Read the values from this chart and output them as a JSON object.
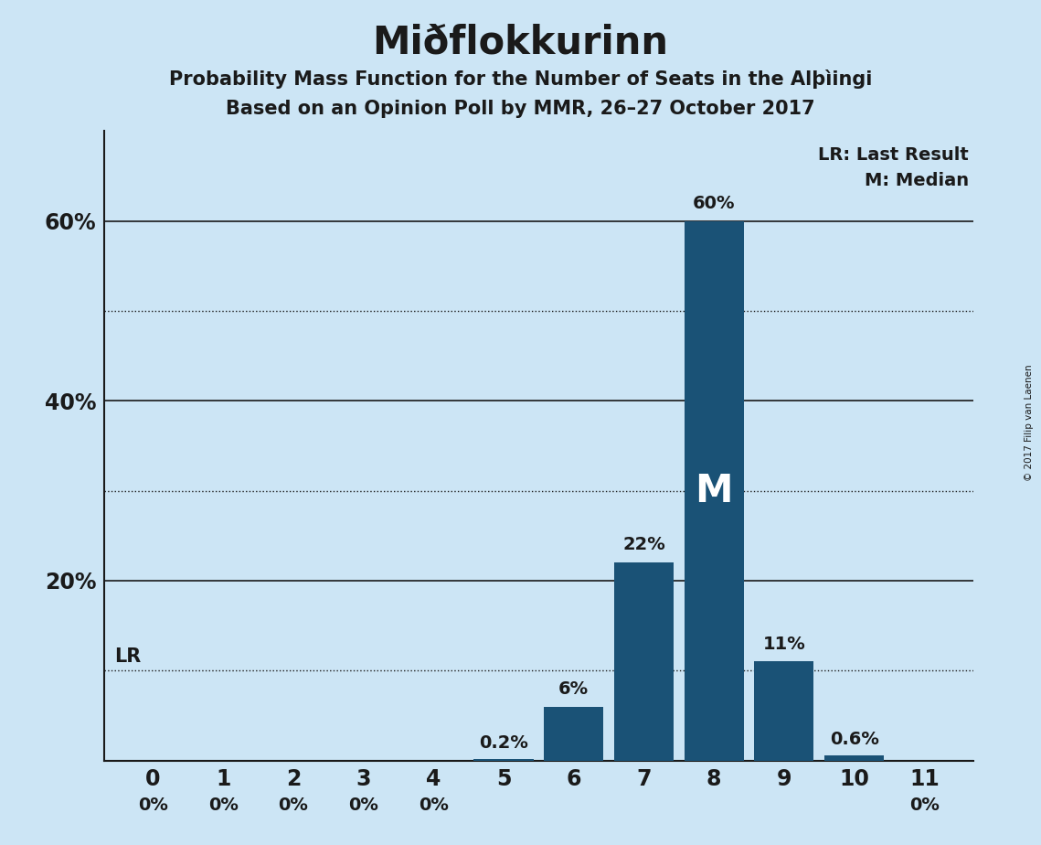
{
  "title": "Miðflokkurinn",
  "subtitle1": "Probability Mass Function for the Number of Seats in the Alþìingi",
  "subtitle2": "Based on an Opinion Poll by MMR, 26–27 October 2017",
  "copyright": "© 2017 Filip van Laenen",
  "seats": [
    0,
    1,
    2,
    3,
    4,
    5,
    6,
    7,
    8,
    9,
    10,
    11
  ],
  "probabilities": [
    0.0,
    0.0,
    0.0,
    0.0,
    0.0,
    0.2,
    6.0,
    22.0,
    60.0,
    11.0,
    0.6,
    0.0
  ],
  "labels": [
    "0%",
    "0%",
    "0%",
    "0%",
    "0%",
    "0.2%",
    "6%",
    "22%",
    "60%",
    "11%",
    "0.6%",
    "0%"
  ],
  "bar_color": "#1a5276",
  "background_color": "#cce5f5",
  "text_color": "#1a1a1a",
  "median_seat": 8,
  "lr_value": 10.0,
  "ylim": [
    0,
    70
  ],
  "solid_gridlines": [
    20,
    40,
    60
  ],
  "dotted_gridlines": [
    10,
    30,
    50
  ],
  "lr_line": 10.0,
  "legend_lr": "LR: Last Result",
  "legend_m": "M: Median",
  "ytick_positions": [
    20,
    40,
    60
  ],
  "ytick_labels": [
    "20%",
    "40%",
    "60%"
  ]
}
